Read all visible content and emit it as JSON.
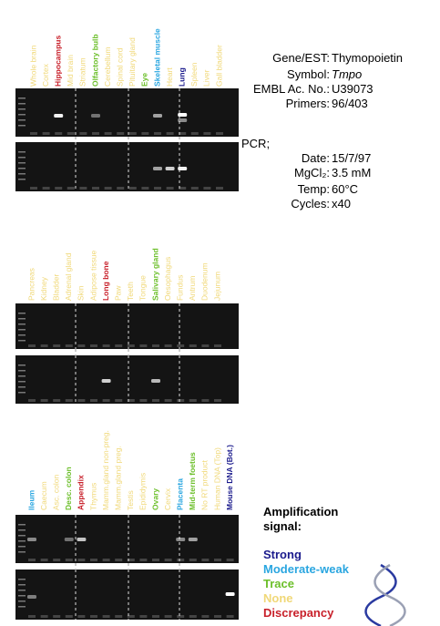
{
  "panels": [
    {
      "lanes": [
        {
          "label": "Whole brain",
          "color": "#f0d878"
        },
        {
          "label": "Cortex",
          "color": "#f0d878"
        },
        {
          "label": "Hippocampus",
          "color": "#c8202a"
        },
        {
          "label": "Mid brain",
          "color": "#f0d878"
        },
        {
          "label": "Striatum",
          "color": "#f0d878"
        },
        {
          "label": "Olfactory bulb",
          "color": "#6cbf2a"
        },
        {
          "label": "Cerebellum",
          "color": "#f0d878"
        },
        {
          "label": "Spinal cord",
          "color": "#f0d878"
        },
        {
          "label": "Pituitary gland",
          "color": "#f0d878"
        },
        {
          "label": "Eye",
          "color": "#6cbf2a"
        },
        {
          "label": "Skeletal muscle",
          "color": "#2aa6e0"
        },
        {
          "label": "Heart",
          "color": "#f0d878"
        },
        {
          "label": "Lung",
          "color": "#1a1a8c"
        },
        {
          "label": "Spleen",
          "color": "#f0d878"
        },
        {
          "label": "Liver",
          "color": "#f0d878"
        },
        {
          "label": "Gall bladder",
          "color": "#f0d878"
        }
      ]
    },
    {
      "lanes": [
        {
          "label": "Pancreas",
          "color": "#f0d878"
        },
        {
          "label": "Kidney",
          "color": "#f0d878"
        },
        {
          "label": "Bladder",
          "color": "#f0d878"
        },
        {
          "label": "Adrenal gland",
          "color": "#f0d878"
        },
        {
          "label": "Skin",
          "color": "#f0d878"
        },
        {
          "label": "Adipose tissue",
          "color": "#f0d878"
        },
        {
          "label": "Long bone",
          "color": "#c8202a"
        },
        {
          "label": "Paw",
          "color": "#f0d878"
        },
        {
          "label": "Teeth",
          "color": "#f0d878"
        },
        {
          "label": "Tongue",
          "color": "#f0d878"
        },
        {
          "label": "Salivary gland",
          "color": "#6cbf2a"
        },
        {
          "label": "Oesophagus",
          "color": "#f0d878"
        },
        {
          "label": "Fundus",
          "color": "#f0d878"
        },
        {
          "label": "Antrum",
          "color": "#f0d878"
        },
        {
          "label": "Duodenum",
          "color": "#f0d878"
        },
        {
          "label": "Jejunum",
          "color": "#f0d878"
        }
      ]
    },
    {
      "lanes": [
        {
          "label": "Ileum",
          "color": "#2aa6e0"
        },
        {
          "label": "Caecum",
          "color": "#f0d878"
        },
        {
          "label": "Asc. colon",
          "color": "#f0d878"
        },
        {
          "label": "Desc. colon",
          "color": "#6cbf2a"
        },
        {
          "label": "Appendix",
          "color": "#c8202a"
        },
        {
          "label": "Thymus",
          "color": "#f0d878"
        },
        {
          "label": "Mamm.gland non-preg.",
          "color": "#f0d878"
        },
        {
          "label": "Mamm.gland preg.",
          "color": "#f0d878"
        },
        {
          "label": "Testis",
          "color": "#f0d878"
        },
        {
          "label": "Epididymis",
          "color": "#f0d878"
        },
        {
          "label": "Ovary",
          "color": "#6cbf2a"
        },
        {
          "label": "Cervix",
          "color": "#f0d878"
        },
        {
          "label": "Placenta",
          "color": "#2aa6e0"
        },
        {
          "label": "Mid-term foetus",
          "color": "#6cbf2a"
        },
        {
          "label": "No RT product",
          "color": "#f0d878"
        },
        {
          "label": "Human DNA (Top)",
          "color": "#f0d878"
        },
        {
          "label": "Mouse DNA (Bot.)",
          "color": "#1a1a8c"
        }
      ]
    }
  ],
  "info": {
    "rows": [
      {
        "key": "Gene/EST:",
        "value": "Thymopoietin"
      },
      {
        "key": "Symbol:",
        "value": "Tmpo"
      },
      {
        "key": "EMBL Ac. No.:",
        "value": "U39073"
      },
      {
        "key": "Primers:",
        "value": "96/403"
      }
    ],
    "pcr_title": "PCR;",
    "pcr_rows": [
      {
        "key": "Date:",
        "value": "15/7/97"
      },
      {
        "key": "MgCl₂:",
        "value": "3.5 mM"
      },
      {
        "key": "Temp:",
        "value": "60°C"
      },
      {
        "key": "Cycles:",
        "value": "x40"
      }
    ]
  },
  "legend": {
    "title_lines": [
      "Amplification",
      "signal:"
    ],
    "items": [
      {
        "label": "Strong",
        "color": "#1a1a8c"
      },
      {
        "label": "Moderate-weak",
        "color": "#2aa6e0"
      },
      {
        "label": "Trace",
        "color": "#6cbf2a"
      },
      {
        "label": "None",
        "color": "#f0d878"
      },
      {
        "label": "Discrepancy",
        "color": "#c8202a"
      }
    ]
  }
}
